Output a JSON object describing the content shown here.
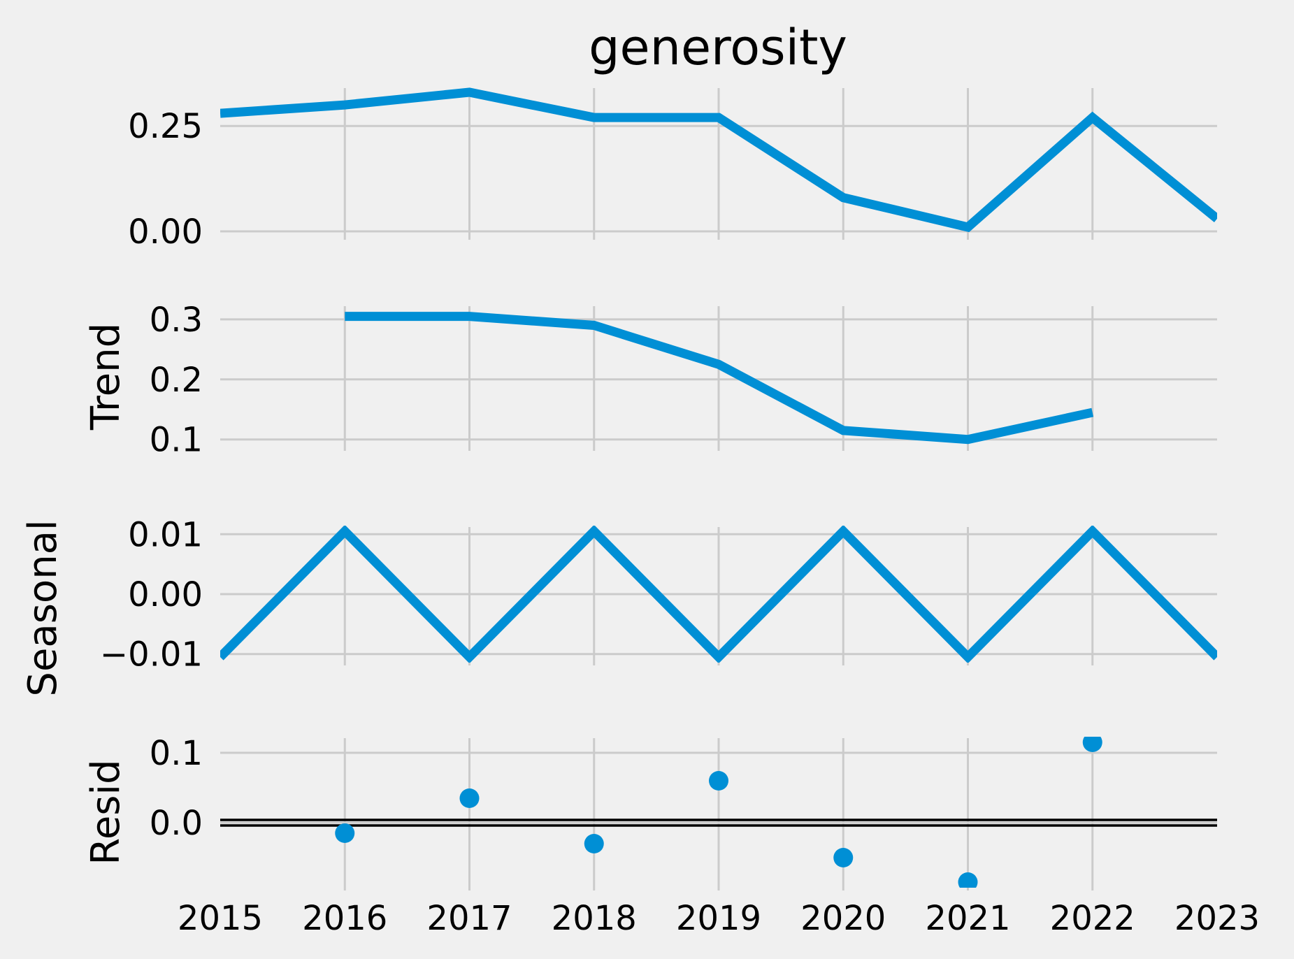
{
  "chart_data": {
    "type": "line",
    "title": "generosity",
    "x": [
      2015,
      2016,
      2017,
      2018,
      2019,
      2020,
      2021,
      2022,
      2023
    ],
    "xlim": [
      2015,
      2023
    ],
    "x_tick_labels": [
      "2015",
      "2016",
      "2017",
      "2018",
      "2019",
      "2020",
      "2021",
      "2022",
      "2023"
    ],
    "grid": true,
    "panels": [
      {
        "id": "observed",
        "ylabel": "",
        "kind": "line",
        "ylim": [
          0.0,
          0.33
        ],
        "y_ticks": [
          0.0,
          0.25
        ],
        "y_tick_labels": [
          "0.00",
          "0.25"
        ],
        "values": [
          0.28,
          0.3,
          0.33,
          0.27,
          0.27,
          0.08,
          0.01,
          0.27,
          0.03
        ]
      },
      {
        "id": "trend",
        "ylabel": "Trend",
        "kind": "line",
        "ylim": [
          0.095,
          0.315
        ],
        "y_ticks": [
          0.1,
          0.2,
          0.3
        ],
        "y_tick_labels": [
          "0.1",
          "0.2",
          "0.3"
        ],
        "values": [
          null,
          0.305,
          0.305,
          0.29,
          0.225,
          0.115,
          0.1,
          0.145,
          null
        ]
      },
      {
        "id": "seasonal",
        "ylabel": "Seasonal",
        "kind": "line",
        "ylim": [
          -0.0105,
          0.0105
        ],
        "y_ticks": [
          -0.01,
          0.0,
          0.01
        ],
        "y_tick_labels": [
          "−0.01",
          "0.00",
          "0.01"
        ],
        "values": [
          -0.0105,
          0.0105,
          -0.0105,
          0.0105,
          -0.0105,
          0.0105,
          -0.0105,
          0.0105,
          -0.0105
        ]
      },
      {
        "id": "resid",
        "ylabel": "Resid",
        "kind": "scatter",
        "ylim": [
          -0.085,
          0.115
        ],
        "y_ticks": [
          0.0,
          0.1
        ],
        "y_tick_labels": [
          "0.0",
          "0.1"
        ],
        "zero_line": true,
        "values": [
          null,
          -0.015,
          0.035,
          -0.03,
          0.06,
          -0.05,
          -0.085,
          0.115,
          null
        ]
      }
    ]
  }
}
